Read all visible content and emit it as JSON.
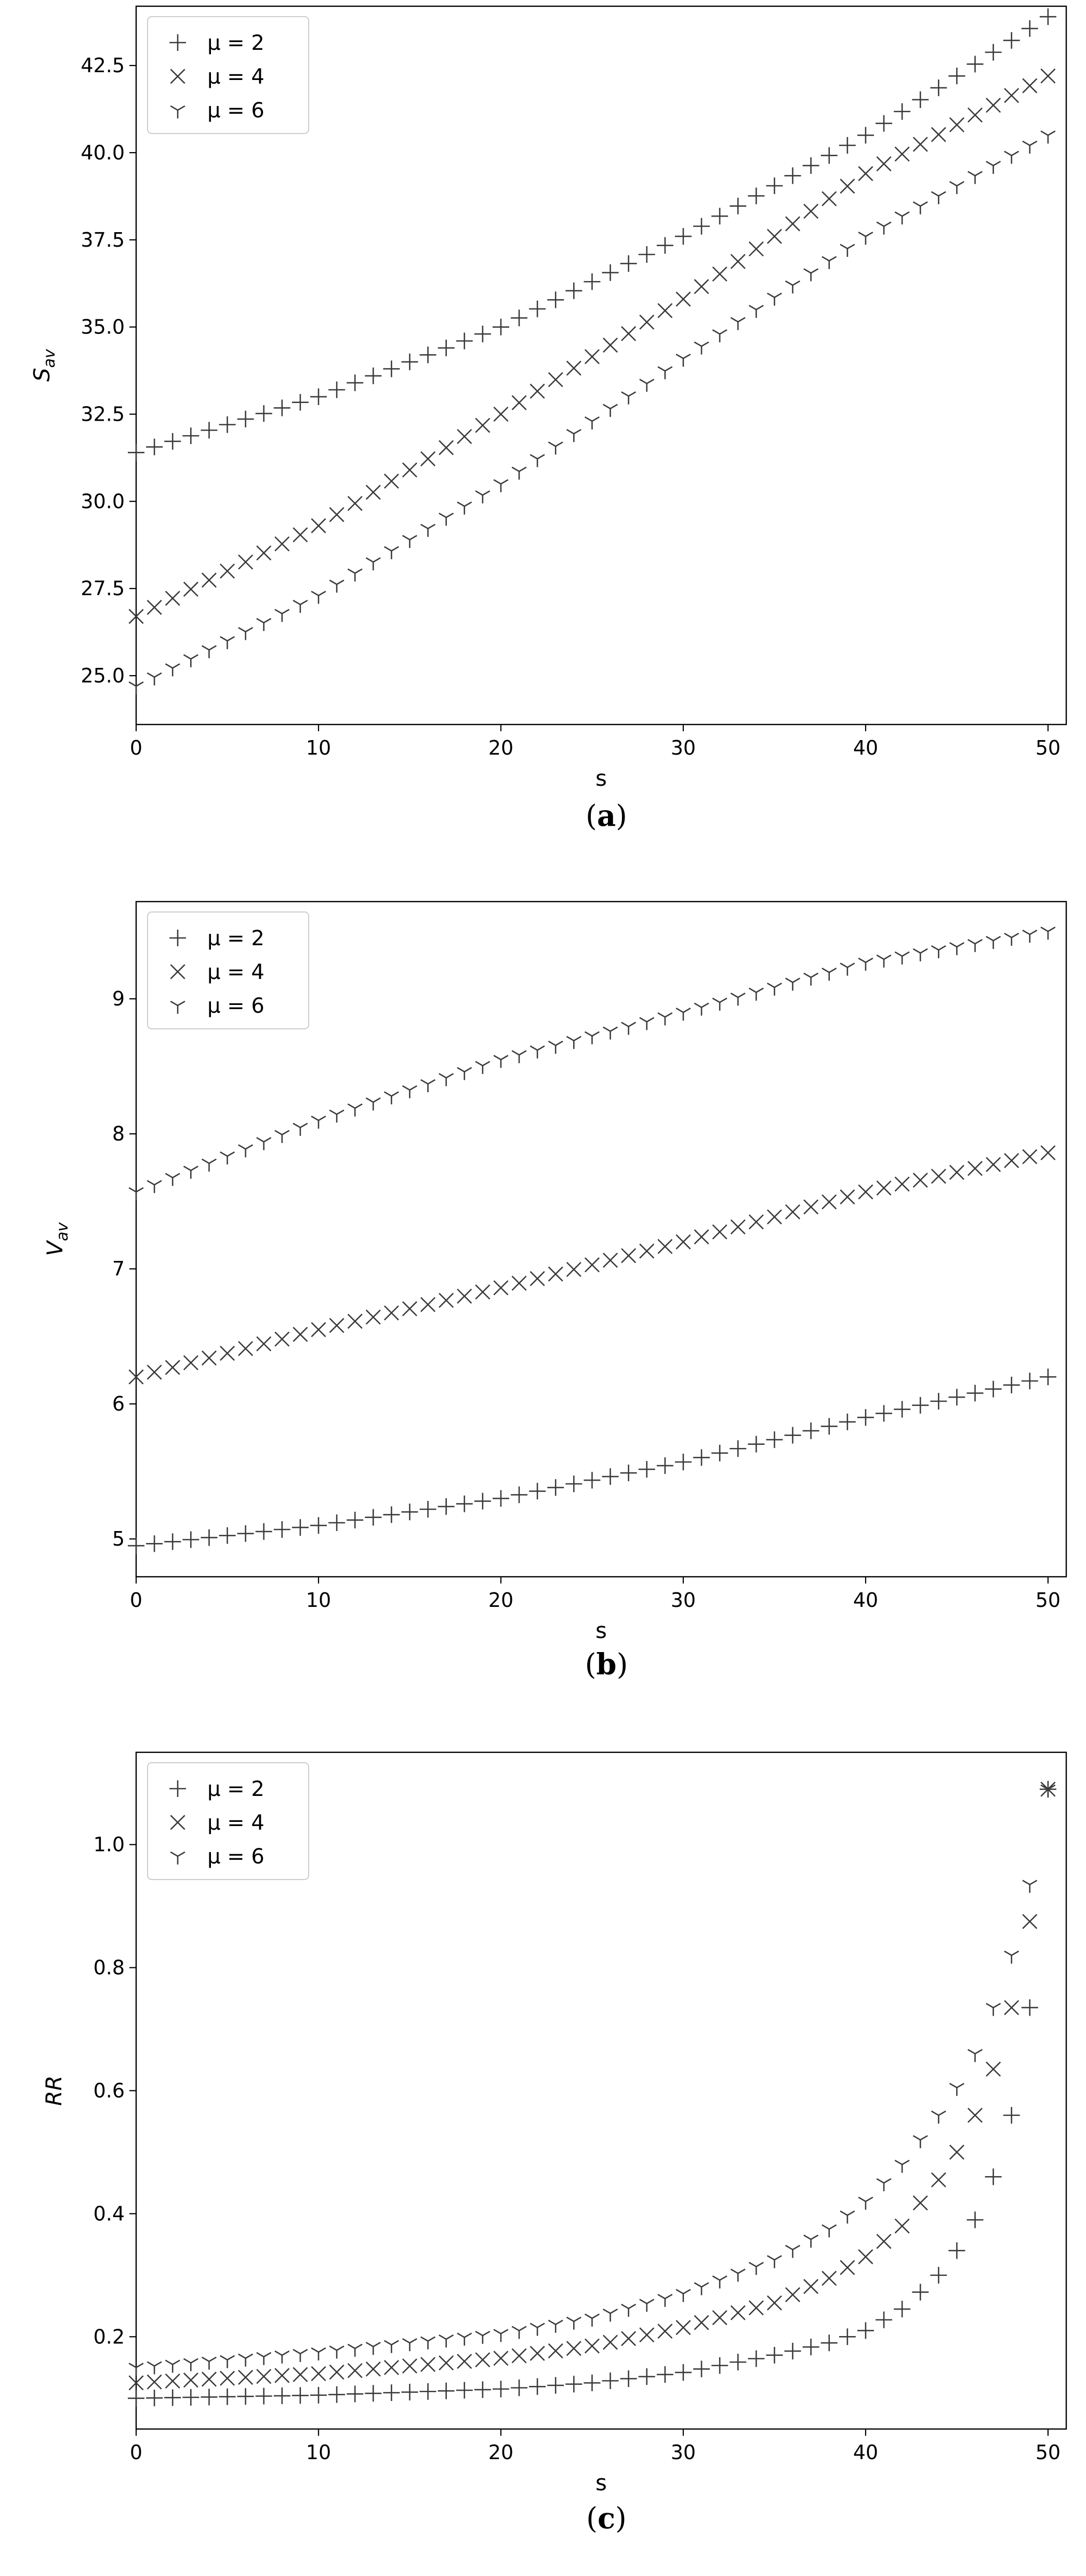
{
  "chart_data": [
    {
      "type": "scatter",
      "panel_label": "(a)",
      "xlabel": "s",
      "ylabel": "S_av",
      "ylabel_main": "S",
      "ylabel_sub": "av",
      "xlim": [
        0,
        51
      ],
      "ylim": [
        23.6,
        44.2
      ],
      "xticks": [
        0,
        10,
        20,
        30,
        40,
        50
      ],
      "yticks": [
        25.0,
        27.5,
        30.0,
        32.5,
        35.0,
        37.5,
        40.0,
        42.5
      ],
      "ytick_labels": [
        "25.0",
        "27.5",
        "30.0",
        "32.5",
        "35.0",
        "37.5",
        "40.0",
        "42.5"
      ],
      "legend_position": "top-left",
      "grid": false,
      "series": [
        {
          "name": "μ = 2",
          "marker": "plus",
          "x0": 0,
          "dx": 1,
          "points": 51,
          "knots_x": [
            0,
            10,
            20,
            30,
            40,
            50
          ],
          "knots_y": [
            31.4,
            33.0,
            35.0,
            37.6,
            40.5,
            43.9
          ]
        },
        {
          "name": "μ = 4",
          "marker": "x",
          "x0": 0,
          "dx": 1,
          "points": 51,
          "knots_x": [
            0,
            10,
            20,
            30,
            40,
            50
          ],
          "knots_y": [
            26.7,
            29.3,
            32.5,
            35.8,
            39.4,
            42.2
          ]
        },
        {
          "name": "μ = 6",
          "marker": "tri",
          "x0": 0,
          "dx": 1,
          "points": 51,
          "knots_x": [
            0,
            10,
            20,
            30,
            40,
            50
          ],
          "knots_y": [
            24.7,
            27.3,
            30.5,
            34.1,
            37.6,
            40.5
          ]
        }
      ]
    },
    {
      "type": "scatter",
      "panel_label": "(b)",
      "xlabel": "s",
      "ylabel": "V_av",
      "ylabel_main": "V",
      "ylabel_sub": "av",
      "xlim": [
        0,
        51
      ],
      "ylim": [
        4.72,
        9.72
      ],
      "xticks": [
        0,
        10,
        20,
        30,
        40,
        50
      ],
      "yticks": [
        5,
        6,
        7,
        8,
        9
      ],
      "ytick_labels": [
        "5",
        "6",
        "7",
        "8",
        "9"
      ],
      "legend_position": "top-left",
      "grid": false,
      "series": [
        {
          "name": "μ = 2",
          "marker": "plus",
          "x0": 0,
          "dx": 1,
          "points": 51,
          "knots_x": [
            0,
            10,
            20,
            30,
            40,
            50
          ],
          "knots_y": [
            4.95,
            5.1,
            5.3,
            5.57,
            5.9,
            6.2
          ]
        },
        {
          "name": "μ = 4",
          "marker": "x",
          "x0": 0,
          "dx": 1,
          "points": 51,
          "knots_x": [
            0,
            10,
            20,
            30,
            40,
            50
          ],
          "knots_y": [
            6.2,
            6.55,
            6.86,
            7.2,
            7.57,
            7.86
          ]
        },
        {
          "name": "μ = 6",
          "marker": "tri",
          "x0": 0,
          "dx": 1,
          "points": 51,
          "knots_x": [
            0,
            10,
            20,
            30,
            40,
            50
          ],
          "knots_y": [
            7.57,
            8.1,
            8.55,
            8.9,
            9.27,
            9.5
          ]
        }
      ]
    },
    {
      "type": "scatter",
      "panel_label": "(c)",
      "xlabel": "s",
      "ylabel": "RR",
      "ylabel_main": "RR",
      "ylabel_sub": "",
      "xlim": [
        0,
        51
      ],
      "ylim": [
        0.05,
        1.15
      ],
      "xticks": [
        0,
        10,
        20,
        30,
        40,
        50
      ],
      "yticks": [
        0.2,
        0.4,
        0.6,
        0.8,
        1.0
      ],
      "ytick_labels": [
        "0.2",
        "0.4",
        "0.6",
        "0.8",
        "1.0"
      ],
      "legend_position": "top-left",
      "grid": false,
      "series": [
        {
          "name": "μ = 2",
          "marker": "plus",
          "x0": 0,
          "dx": 1,
          "points": 51,
          "knots_x": [
            0,
            10,
            20,
            25,
            30,
            35,
            38,
            40,
            42,
            44,
            45,
            46,
            47,
            48,
            49,
            50
          ],
          "knots_y": [
            0.1,
            0.105,
            0.115,
            0.125,
            0.142,
            0.17,
            0.19,
            0.21,
            0.245,
            0.3,
            0.34,
            0.39,
            0.46,
            0.56,
            0.735,
            1.09
          ]
        },
        {
          "name": "μ = 4",
          "marker": "x",
          "x0": 0,
          "dx": 1,
          "points": 51,
          "knots_x": [
            0,
            10,
            20,
            25,
            30,
            35,
            38,
            40,
            42,
            44,
            45,
            46,
            47,
            48,
            49,
            50
          ],
          "knots_y": [
            0.125,
            0.14,
            0.165,
            0.185,
            0.215,
            0.255,
            0.295,
            0.33,
            0.38,
            0.455,
            0.5,
            0.56,
            0.635,
            0.735,
            0.875,
            1.09
          ]
        },
        {
          "name": "μ = 6",
          "marker": "tri",
          "x0": 0,
          "dx": 1,
          "points": 51,
          "knots_x": [
            0,
            10,
            20,
            25,
            30,
            35,
            38,
            40,
            42,
            44,
            45,
            46,
            47,
            48,
            49,
            50
          ],
          "knots_y": [
            0.15,
            0.175,
            0.205,
            0.23,
            0.27,
            0.325,
            0.375,
            0.42,
            0.48,
            0.56,
            0.605,
            0.66,
            0.735,
            0.82,
            0.935,
            1.09
          ]
        }
      ]
    }
  ]
}
